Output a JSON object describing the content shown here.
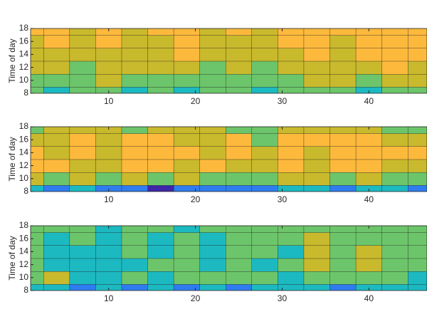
{
  "chart_data": [
    {
      "type": "contour",
      "ylabel": "Time of day",
      "x": [
        1,
        4,
        7,
        10,
        13,
        16,
        19,
        22,
        25,
        28,
        31,
        34,
        37,
        40,
        43,
        46
      ],
      "y": [
        8,
        10,
        12,
        14,
        16,
        18
      ],
      "z": [
        [
          4,
          3,
          4,
          4,
          3,
          4,
          3,
          4,
          4,
          3,
          4,
          4,
          4,
          3,
          4,
          4
        ],
        [
          4,
          4,
          4,
          5,
          4,
          4,
          4,
          4,
          4,
          4,
          4,
          5,
          5,
          4,
          5,
          5
        ],
        [
          5,
          5,
          4,
          5,
          5,
          5,
          5,
          4,
          5,
          4,
          5,
          5,
          5,
          5,
          6,
          5
        ],
        [
          5,
          5,
          5,
          5,
          5,
          5,
          6,
          5,
          5,
          5,
          5,
          6,
          5,
          6,
          6,
          6
        ],
        [
          5,
          6,
          5,
          6,
          5,
          5,
          6,
          5,
          5,
          5,
          6,
          6,
          5,
          6,
          6,
          6
        ],
        [
          6,
          6,
          5,
          6,
          5,
          6,
          6,
          5,
          6,
          5,
          6,
          6,
          6,
          6,
          6,
          6
        ]
      ],
      "levels": [
        1,
        2,
        3,
        4,
        5,
        6
      ],
      "colors": [
        "#3e26a8",
        "#2f7cf0",
        "#1cb9c1",
        "#6cc56a",
        "#c9b92c",
        "#fdb93c"
      ],
      "xlim": [
        1,
        46.7
      ],
      "ylim": [
        8,
        18
      ],
      "xticks": [
        10,
        20,
        30,
        40
      ],
      "yticks": [
        8,
        10,
        12,
        14,
        16,
        18
      ]
    },
    {
      "type": "contour",
      "ylabel": "Time of day",
      "x": [
        1,
        4,
        7,
        10,
        13,
        16,
        19,
        22,
        25,
        28,
        31,
        34,
        37,
        40,
        43,
        46
      ],
      "y": [
        8,
        10,
        12,
        14,
        16,
        18
      ],
      "z": [
        [
          3,
          2,
          3,
          2,
          2,
          1,
          2,
          2,
          2,
          2,
          3,
          3,
          2,
          3,
          3,
          2
        ],
        [
          5,
          4,
          5,
          4,
          5,
          4,
          5,
          4,
          4,
          4,
          5,
          5,
          4,
          5,
          4,
          4
        ],
        [
          6,
          6,
          5,
          5,
          6,
          6,
          5,
          6,
          5,
          5,
          6,
          5,
          6,
          6,
          5,
          5
        ],
        [
          6,
          5,
          6,
          5,
          6,
          6,
          6,
          5,
          6,
          5,
          6,
          5,
          6,
          6,
          6,
          6
        ],
        [
          5,
          5,
          6,
          5,
          6,
          6,
          5,
          5,
          6,
          4,
          6,
          6,
          6,
          6,
          5,
          5
        ],
        [
          4,
          5,
          5,
          5,
          4,
          5,
          5,
          5,
          4,
          4,
          5,
          5,
          5,
          5,
          4,
          4
        ]
      ],
      "levels": [
        1,
        2,
        3,
        4,
        5,
        6
      ],
      "colors": [
        "#3e26a8",
        "#2f7cf0",
        "#1cb9c1",
        "#6cc56a",
        "#c9b92c",
        "#fdb93c"
      ],
      "xlim": [
        1,
        46.7
      ],
      "ylim": [
        8,
        18
      ],
      "xticks": [
        10,
        20,
        30,
        40
      ],
      "yticks": [
        8,
        10,
        12,
        14,
        16,
        18
      ]
    },
    {
      "type": "contour",
      "ylabel": "Time of day",
      "x": [
        1,
        4,
        7,
        10,
        13,
        16,
        19,
        22,
        25,
        28,
        31,
        34,
        37,
        40,
        43,
        46
      ],
      "y": [
        8,
        10,
        12,
        14,
        16,
        18
      ],
      "z": [
        [
          3,
          3,
          2,
          3,
          2,
          3,
          2,
          3,
          2,
          3,
          3,
          3,
          2,
          3,
          3,
          3
        ],
        [
          4,
          5,
          3,
          3,
          4,
          3,
          4,
          4,
          4,
          4,
          3,
          4,
          4,
          4,
          4,
          3
        ],
        [
          4,
          3,
          3,
          3,
          3,
          4,
          4,
          3,
          4,
          3,
          4,
          5,
          4,
          5,
          4,
          4
        ],
        [
          4,
          3,
          3,
          3,
          4,
          3,
          4,
          3,
          4,
          4,
          3,
          5,
          4,
          5,
          4,
          4
        ],
        [
          4,
          3,
          4,
          3,
          4,
          3,
          4,
          3,
          4,
          4,
          4,
          5,
          4,
          4,
          4,
          4
        ],
        [
          4,
          4,
          4,
          3,
          4,
          4,
          3,
          4,
          4,
          4,
          4,
          4,
          4,
          4,
          4,
          4
        ]
      ],
      "levels": [
        1,
        2,
        3,
        4,
        5,
        6
      ],
      "colors": [
        "#3e26a8",
        "#2f7cf0",
        "#1cb9c1",
        "#6cc56a",
        "#c9b92c",
        "#fdb93c"
      ],
      "xlim": [
        1,
        46.7
      ],
      "ylim": [
        8,
        18
      ],
      "xticks": [
        10,
        20,
        30,
        40
      ],
      "yticks": [
        8,
        10,
        12,
        14,
        16,
        18
      ]
    }
  ]
}
